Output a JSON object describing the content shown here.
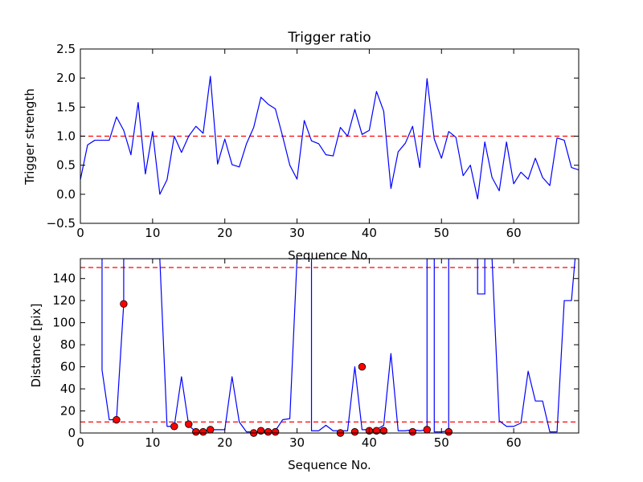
{
  "chart_data": [
    {
      "type": "line",
      "title": "Trigger ratio",
      "xlabel": "Sequence No.",
      "ylabel": "Trigger strength",
      "xlim": [
        0,
        69
      ],
      "ylim": [
        -0.5,
        2.5
      ],
      "xticks": [
        0,
        10,
        20,
        30,
        40,
        50,
        60
      ],
      "yticks": [
        -0.5,
        0.0,
        0.5,
        1.0,
        1.5,
        2.0,
        2.5
      ],
      "grid": false,
      "colors": {
        "line": "#0000ff",
        "threshold": "#ff0000"
      },
      "threshold_lines": [
        1.0
      ],
      "series": [
        {
          "x": [
            0,
            1,
            2,
            3,
            4,
            5,
            6,
            7,
            8,
            9,
            10,
            11,
            12,
            13,
            14,
            15,
            16,
            17,
            18,
            19,
            20,
            21,
            22,
            23,
            24,
            25,
            26,
            27,
            28,
            29,
            30,
            31,
            32,
            33,
            34,
            35,
            36,
            37,
            38,
            39,
            40,
            41,
            42,
            43,
            44,
            45,
            46,
            47,
            48,
            49,
            50,
            51,
            52,
            53,
            54,
            55,
            56,
            57,
            58,
            59,
            60,
            61,
            62,
            63,
            64,
            65,
            66,
            67,
            68,
            69
          ],
          "y": [
            0.25,
            0.85,
            0.93,
            0.93,
            0.93,
            1.33,
            1.1,
            0.68,
            1.58,
            0.35,
            1.08,
            0.0,
            0.25,
            1.0,
            0.72,
            1.0,
            1.17,
            1.05,
            2.03,
            0.52,
            0.95,
            0.51,
            0.47,
            0.87,
            1.15,
            1.67,
            1.55,
            1.47,
            1.0,
            0.5,
            0.26,
            1.27,
            0.92,
            0.87,
            0.68,
            0.66,
            1.15,
            1.0,
            1.46,
            1.03,
            1.1,
            1.77,
            1.43,
            0.1,
            0.73,
            0.88,
            1.17,
            0.46,
            1.99,
            0.95,
            0.62,
            1.08,
            0.98,
            0.32,
            0.5,
            -0.08,
            0.9,
            0.29,
            0.06,
            0.9,
            0.18,
            0.38,
            0.26,
            0.62,
            0.29,
            0.15,
            0.97,
            0.93,
            0.46,
            0.42
          ]
        }
      ]
    },
    {
      "type": "line",
      "title": "",
      "xlabel": "Sequence No.",
      "ylabel": "Distance [pix]",
      "xlim": [
        0,
        69
      ],
      "ylim": [
        0,
        158
      ],
      "xticks": [
        0,
        10,
        20,
        30,
        40,
        50,
        60
      ],
      "yticks": [
        0,
        20,
        40,
        60,
        80,
        100,
        120,
        140
      ],
      "grid": false,
      "colors": {
        "line": "#0000ff",
        "threshold": "#ff0000",
        "markers": "#ff0000"
      },
      "threshold_lines": [
        10,
        150
      ],
      "series": [
        {
          "x": [
            3,
            3,
            4,
            5,
            6,
            6,
            11,
            12,
            13,
            14,
            15,
            16,
            17,
            18,
            19,
            20,
            21,
            22,
            23,
            24,
            25,
            26,
            27,
            28,
            29,
            30,
            30,
            32,
            32,
            33,
            34,
            35,
            36,
            37,
            38,
            39,
            40,
            41,
            42,
            43,
            44,
            45,
            46,
            47,
            48,
            48,
            49,
            49,
            50,
            51,
            51,
            55,
            55,
            56,
            56,
            57,
            57,
            58,
            59,
            60,
            61,
            62,
            63,
            64,
            65,
            66,
            67,
            68,
            68.5
          ],
          "y": [
            158,
            57,
            12,
            12,
            117,
            158,
            158,
            6,
            6,
            51,
            7,
            1,
            1,
            3,
            3,
            3,
            51,
            10,
            1,
            1,
            1,
            1,
            2,
            12,
            13,
            158,
            158,
            158,
            2,
            2,
            7,
            2,
            2,
            2,
            60,
            3,
            3,
            3,
            7,
            72,
            2,
            2,
            3,
            2,
            3,
            158,
            158,
            1,
            1,
            2,
            158,
            158,
            126,
            126,
            158,
            158,
            158,
            11,
            6,
            6,
            9,
            56,
            29,
            29,
            1,
            1,
            120,
            120,
            158
          ]
        },
        {
          "type": "scatter",
          "x": [
            5,
            6,
            13,
            15,
            16,
            17,
            18,
            24,
            25,
            26,
            27,
            36,
            38,
            39,
            40,
            41,
            42,
            46,
            48,
            51
          ],
          "y": [
            12,
            117,
            6,
            8,
            1,
            1,
            3,
            0,
            2,
            1,
            1,
            0,
            1,
            60,
            2,
            2,
            2,
            1,
            3,
            1
          ]
        }
      ]
    }
  ]
}
